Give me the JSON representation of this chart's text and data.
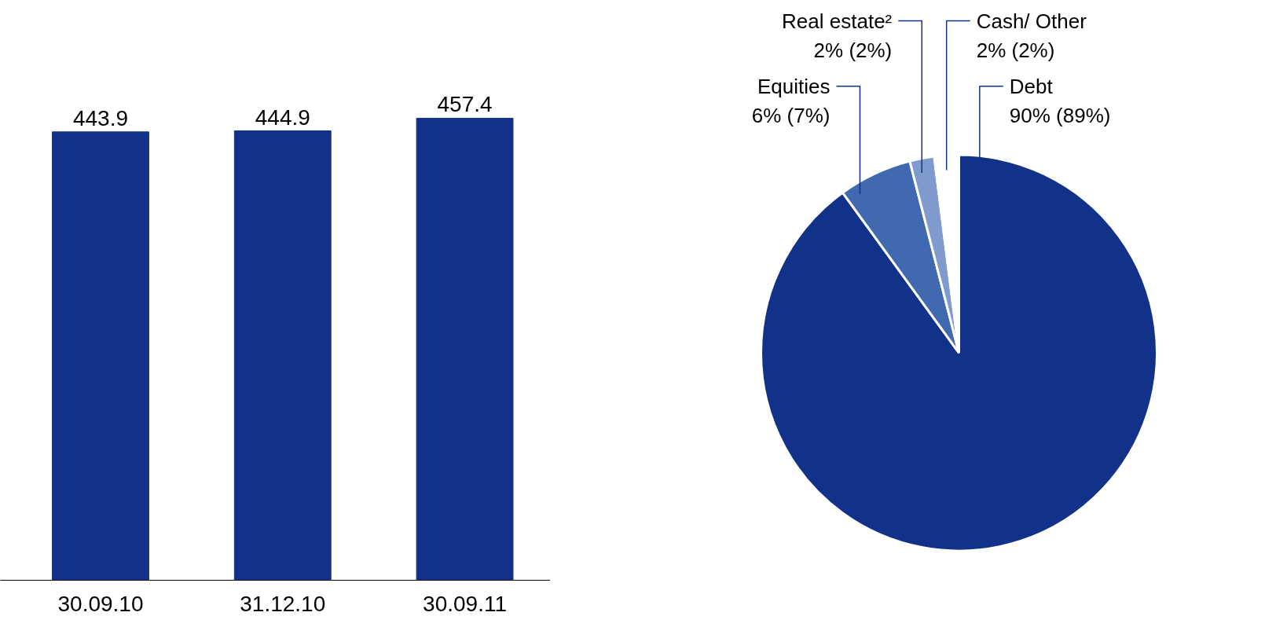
{
  "chart_data": [
    {
      "type": "bar",
      "categories": [
        "30.09.10",
        "31.12.10",
        "30.09.11"
      ],
      "values": [
        443.9,
        444.9,
        457.4
      ],
      "color": "#12328a",
      "data_labels": true
    },
    {
      "type": "pie",
      "categories": [
        "Debt",
        "Equities",
        "Real estate²",
        "Cash/ Other"
      ],
      "values": [
        90,
        6,
        2,
        2
      ],
      "colors": [
        "#12328a",
        "#4169b0",
        "#7f9acc",
        "#ffffff"
      ],
      "value_labels": [
        "90% (89%)",
        "6% (7%)",
        "2% (2%)",
        "2% (2%)"
      ]
    }
  ]
}
